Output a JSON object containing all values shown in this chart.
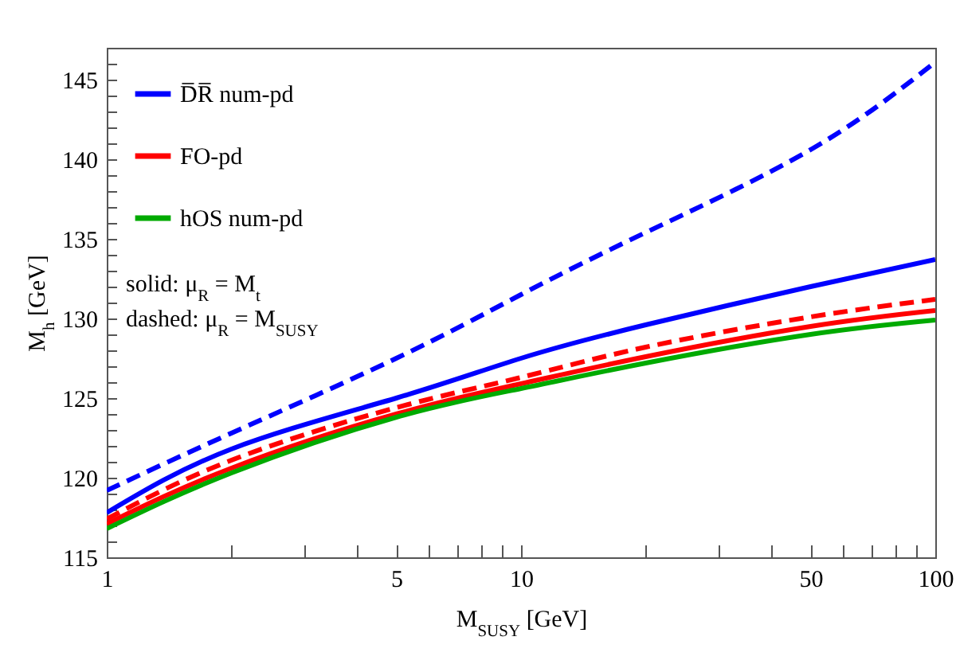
{
  "chart_data": {
    "type": "line",
    "xlabel": "M$_{SUSY}$ [GeV]",
    "ylabel": "M$_{h}$ [GeV]",
    "log": "x",
    "grid": false,
    "legend": "top left",
    "annotations": [
      "solid: μ$_{R}$ = M$_{t}$",
      "dashed: μ$_{R}$ = M$_{SUSY}$"
    ],
    "x": [
      1,
      2,
      5,
      10,
      20,
      50,
      100
    ],
    "xlim": [
      1,
      100
    ],
    "xticks": [
      1,
      {
        "value": 2,
        "label": null
      },
      {
        "value": 3,
        "label": null
      },
      {
        "value": 4,
        "label": null
      },
      5,
      {
        "value": 6,
        "label": null
      },
      {
        "value": 7,
        "label": null
      },
      {
        "value": 8,
        "label": null
      },
      {
        "value": 9,
        "label": null
      },
      10,
      {
        "value": 20,
        "label": null
      },
      {
        "value": 30,
        "label": null
      },
      {
        "value": 40,
        "label": null
      },
      50,
      {
        "value": 60,
        "label": null
      },
      {
        "value": 70,
        "label": null
      },
      {
        "value": 80,
        "label": null
      },
      {
        "value": 90,
        "label": null
      },
      100
    ],
    "ylim": [
      115,
      147
    ],
    "yticks": [
      115,
      {
        "value": 116,
        "label": null
      },
      {
        "value": 117,
        "label": null
      },
      {
        "value": 118,
        "label": null
      },
      {
        "value": 119,
        "label": null
      },
      120,
      {
        "value": 121,
        "label": null
      },
      {
        "value": 122,
        "label": null
      },
      {
        "value": 123,
        "label": null
      },
      {
        "value": 124,
        "label": null
      },
      125,
      {
        "value": 126,
        "label": null
      },
      {
        "value": 127,
        "label": null
      },
      {
        "value": 128,
        "label": null
      },
      {
        "value": 129,
        "label": null
      },
      130,
      {
        "value": 131,
        "label": null
      },
      {
        "value": 132,
        "label": null
      },
      {
        "value": 133,
        "label": null
      },
      {
        "value": 134,
        "label": null
      },
      135,
      {
        "value": 136,
        "label": null
      },
      {
        "value": 137,
        "label": null
      },
      {
        "value": 138,
        "label": null
      },
      {
        "value": 139,
        "label": null
      },
      140,
      {
        "value": 141,
        "label": null
      },
      {
        "value": 142,
        "label": null
      },
      {
        "value": 143,
        "label": null
      },
      {
        "value": 144,
        "label": null
      },
      145,
      {
        "value": 146,
        "label": null
      }
    ],
    "series": [
      {
        "name": "D̅R̅ num-pd",
        "color": "#0000ff",
        "line_style": "solid",
        "values": [
          117.8,
          121.8,
          125.0,
          127.5,
          129.6,
          132.0,
          133.7
        ]
      },
      {
        "name": "FO-pd",
        "color": "#ff0000",
        "line_style": "solid",
        "values": [
          117.1,
          120.6,
          124.0,
          125.9,
          127.6,
          129.5,
          130.5
        ]
      },
      {
        "name": "hOS num-pd",
        "color": "#00aa00",
        "line_style": "solid",
        "values": [
          116.8,
          120.3,
          123.8,
          125.6,
          127.2,
          129.0,
          129.9
        ]
      },
      {
        "color": "#0000ff",
        "line_style": "dashed",
        "values": [
          119.2,
          122.8,
          127.5,
          131.5,
          135.4,
          140.6,
          146.1
        ]
      },
      {
        "color": "#ff0000",
        "line_style": "dashed",
        "values": [
          117.4,
          121.1,
          124.4,
          126.3,
          128.2,
          130.1,
          131.2
        ]
      }
    ]
  }
}
